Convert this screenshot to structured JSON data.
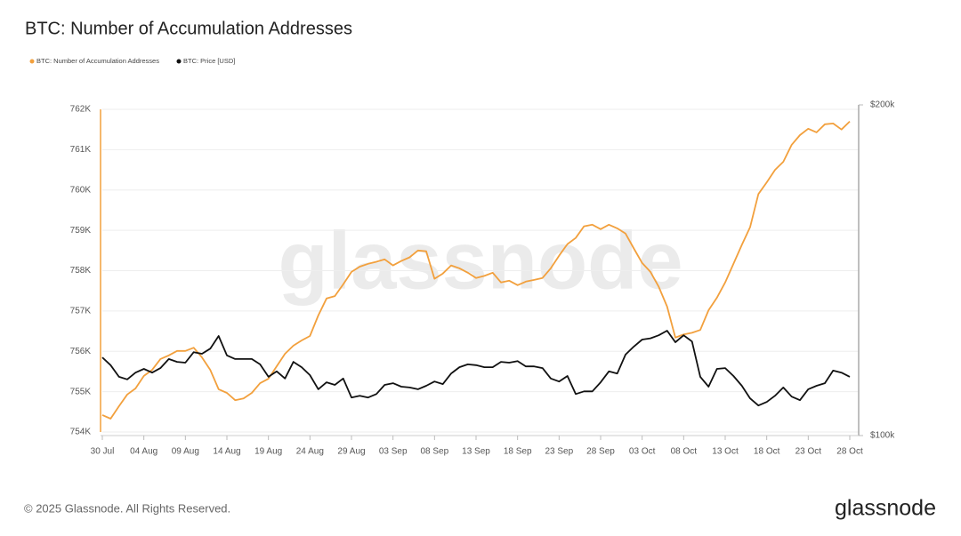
{
  "chart_data": {
    "type": "line",
    "title": "BTC: Number of Accumulation Addresses",
    "watermark": "glassnode",
    "footer": "© 2025 Glassnode. All Rights Reserved.",
    "logo": "glassnode",
    "categories": [
      "30 Jul",
      null,
      null,
      null,
      null,
      "04 Aug",
      null,
      null,
      null,
      null,
      "09 Aug",
      null,
      null,
      null,
      null,
      "14 Aug",
      null,
      null,
      null,
      null,
      "19 Aug",
      null,
      null,
      null,
      null,
      "24 Aug",
      null,
      null,
      null,
      null,
      "29 Aug",
      null,
      null,
      null,
      null,
      "03 Sep",
      null,
      null,
      null,
      null,
      "08 Sep",
      null,
      null,
      null,
      null,
      "13 Sep",
      null,
      null,
      null,
      null,
      "18 Sep",
      null,
      null,
      null,
      null,
      "23 Sep",
      null,
      null,
      null,
      null,
      "28 Sep",
      null,
      null,
      null,
      null,
      "03 Oct",
      null,
      null,
      null,
      null,
      "08 Oct",
      null,
      null,
      null,
      null,
      "13 Oct",
      null,
      null,
      null,
      null,
      "18 Oct",
      null,
      null,
      null,
      null,
      "23 Oct",
      null,
      null,
      null,
      null,
      "28 Oct"
    ],
    "series": [
      {
        "name": "BTC: Number of Accumulation Addresses",
        "color": "#f2a03d",
        "values": [
          754420,
          754330,
          754640,
          754930,
          755080,
          755390,
          755540,
          755810,
          755900,
          756010,
          756010,
          756090,
          755850,
          755540,
          755060,
          754970,
          754790,
          754830,
          754970,
          755210,
          755320,
          755630,
          755940,
          756140,
          756270,
          756380,
          756890,
          757310,
          757370,
          757660,
          757970,
          758100,
          758170,
          758220,
          758280,
          758130,
          758240,
          758330,
          758500,
          758480,
          757800,
          757930,
          758130,
          758060,
          757950,
          757820,
          757870,
          757950,
          757710,
          757750,
          757640,
          757730,
          757770,
          757820,
          758060,
          758370,
          758660,
          758810,
          759100,
          759140,
          759030,
          759140,
          759050,
          758920,
          758550,
          758190,
          757970,
          757600,
          757110,
          756340,
          756420,
          756460,
          756530,
          757020,
          757330,
          757710,
          758170,
          758640,
          759080,
          759900,
          760190,
          760500,
          760700,
          761120,
          761360,
          761520,
          761430,
          761630,
          761650,
          761500,
          761700
        ]
      },
      {
        "name": "BTC: Price [USD]",
        "color": "#111111",
        "axis": "y2",
        "values": [
          117800,
          115900,
          113100,
          112500,
          114100,
          115000,
          114100,
          115200,
          117400,
          116700,
          116500,
          119100,
          118700,
          120000,
          123200,
          118300,
          117400,
          117400,
          117400,
          116100,
          113100,
          114400,
          112700,
          116700,
          115400,
          113500,
          110200,
          111800,
          111200,
          112700,
          108300,
          108700,
          108300,
          109100,
          111200,
          111600,
          110800,
          110600,
          110200,
          111000,
          112000,
          111400,
          113900,
          115400,
          116100,
          115900,
          115400,
          115400,
          116700,
          116500,
          116900,
          115600,
          115600,
          115200,
          112700,
          112000,
          113300,
          109100,
          109700,
          109700,
          111800,
          114400,
          113900,
          118500,
          120500,
          122300,
          122600,
          123400,
          124600,
          121600,
          123400,
          121800,
          113100,
          110800,
          115000,
          115200,
          113300,
          111000,
          108100,
          106500,
          107300,
          108700,
          110600,
          108500,
          107700,
          110200,
          111000,
          111600,
          114600,
          114100,
          113100
        ]
      }
    ],
    "ylim": [
      754000,
      762000
    ],
    "yticks": [
      {
        "value": 754000,
        "label": "754K"
      },
      {
        "value": 755000,
        "label": "755K"
      },
      {
        "value": 756000,
        "label": "756K"
      },
      {
        "value": 757000,
        "label": "757K"
      },
      {
        "value": 758000,
        "label": "758K"
      },
      {
        "value": 759000,
        "label": "759K"
      },
      {
        "value": 760000,
        "label": "760K"
      },
      {
        "value": 761000,
        "label": "761K"
      },
      {
        "value": 762000,
        "label": "762K"
      }
    ],
    "y2lim": [
      100000,
      200000
    ],
    "y2ticks": [
      {
        "value": 100000,
        "label": "$100k"
      },
      {
        "value": 200000,
        "label": "$200k"
      }
    ],
    "y2_log": true,
    "grid": true,
    "legend": "top-left"
  }
}
